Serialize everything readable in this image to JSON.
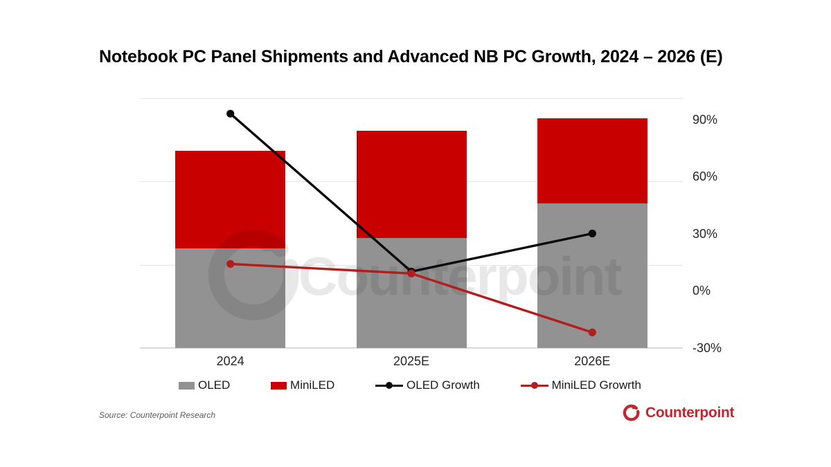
{
  "title": "Notebook PC Panel Shipments and Advanced NB PC Growth, 2024 – 2026 (E)",
  "source_note": "Source: Counterpoint Research",
  "brand": {
    "name": "Counterpoint",
    "color": "#c2272d"
  },
  "watermark_text": "Counterpoint",
  "chart_data": {
    "type": "combo: stacked bar + line",
    "categories": [
      "2024",
      "2025E",
      "2026E"
    ],
    "bar_series": [
      {
        "name": "OLED",
        "color": "#929292",
        "values": [
          40,
          44,
          58
        ]
      },
      {
        "name": "MiniLED",
        "color": "#c80000",
        "values": [
          39,
          43,
          34
        ]
      }
    ],
    "bar_value_note": "left axis unlabeled; values estimated as % of plot height (shipment volume index)",
    "line_series": [
      {
        "name": "OLED Growth",
        "color": "#0a0a0a",
        "values": [
          93,
          10,
          30
        ]
      },
      {
        "name": "MiniLED Growrth",
        "color": "#b21e1e",
        "values": [
          14,
          9,
          -22
        ]
      }
    ],
    "line_unit": "percent, right axis",
    "right_axis": {
      "ticks": [
        {
          "label": "90%",
          "value": 90
        },
        {
          "label": "60%",
          "value": 60
        },
        {
          "label": "30%",
          "value": 30
        },
        {
          "label": "0%",
          "value": 0
        },
        {
          "label": "-30%",
          "value": -30
        }
      ],
      "range": [
        -30,
        101
      ]
    },
    "legend": [
      {
        "label": "OLED",
        "marker": "bar",
        "color": "#929292"
      },
      {
        "label": "MiniLED",
        "marker": "bar",
        "color": "#c80000"
      },
      {
        "label": "OLED Growth",
        "marker": "line",
        "color": "#0a0a0a"
      },
      {
        "label": "MiniLED Growrth",
        "marker": "line",
        "color": "#b21e1e"
      }
    ],
    "legend_position": "bottom",
    "gridlines": "3 horizontal light gridlines + baseline, left-axis intervals"
  }
}
